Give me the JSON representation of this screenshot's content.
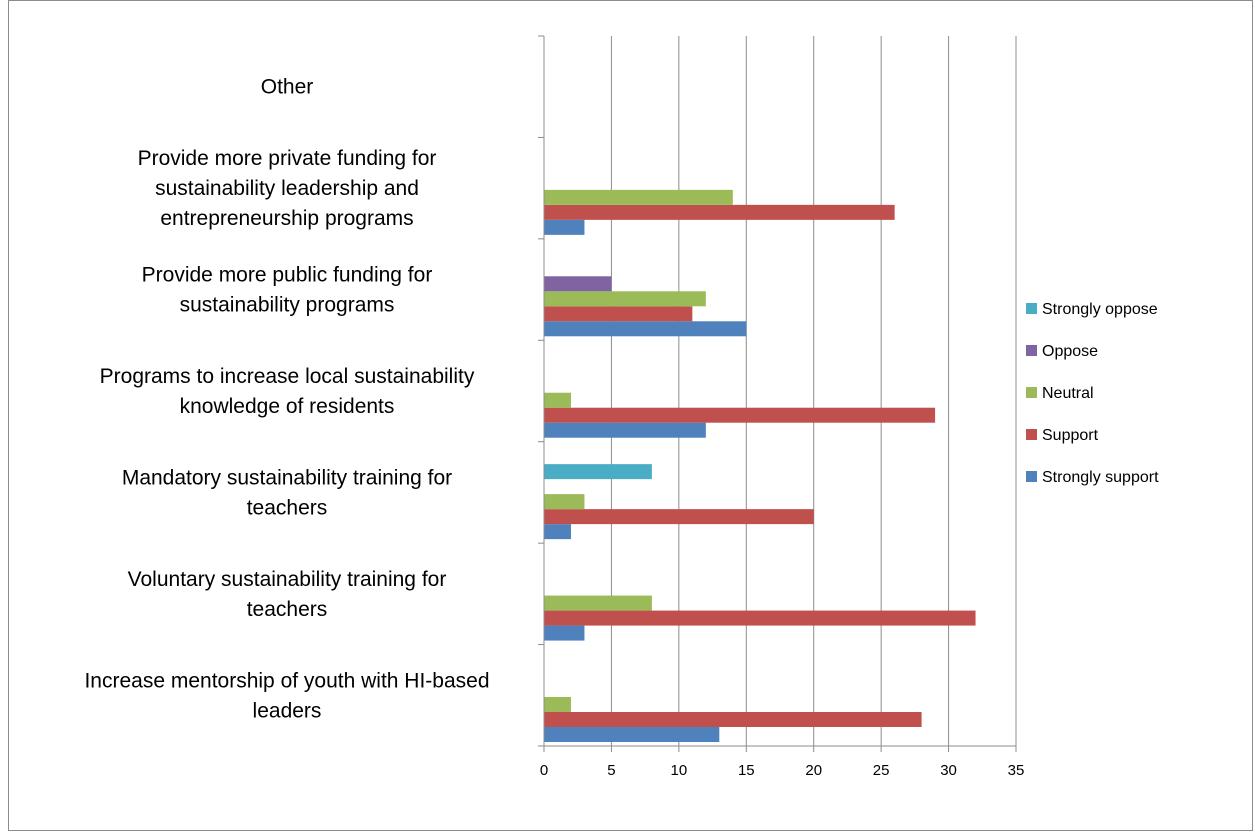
{
  "chart_data": {
    "type": "bar",
    "orientation": "horizontal",
    "grouped": true,
    "categories": [
      "Increase mentorship of youth with HI-based leaders",
      "Voluntary sustainability training for teachers",
      "Mandatory sustainability training for teachers",
      "Programs to increase local sustainability knowledge of residents",
      "Provide more public funding for sustainability programs",
      "Provide more private funding for sustainability leadership and entrepreneurship programs",
      "Other"
    ],
    "series": [
      {
        "name": "Strongly support",
        "color": "#4f81bd",
        "values": [
          13,
          3,
          2,
          12,
          15,
          3,
          0
        ]
      },
      {
        "name": "Support",
        "color": "#c0504d",
        "values": [
          28,
          32,
          20,
          29,
          11,
          26,
          0
        ]
      },
      {
        "name": "Neutral",
        "color": "#9bbb59",
        "values": [
          2,
          8,
          3,
          2,
          12,
          14,
          0
        ]
      },
      {
        "name": "Oppose",
        "color": "#8064a2",
        "values": [
          0,
          0,
          0,
          0,
          5,
          0,
          0
        ]
      },
      {
        "name": "Strongly oppose",
        "color": "#4bacc6",
        "values": [
          0,
          0,
          8,
          0,
          0,
          0,
          0
        ]
      }
    ],
    "xlim": [
      0,
      35
    ],
    "xticks": [
      "0",
      "5",
      "10",
      "15",
      "20",
      "25",
      "30",
      "35"
    ],
    "grid": "vertical",
    "legend": "right",
    "legend_order": [
      "Strongly oppose",
      "Oppose",
      "Neutral",
      "Support",
      "Strongly support"
    ],
    "title": "",
    "xlabel": "",
    "ylabel": ""
  }
}
